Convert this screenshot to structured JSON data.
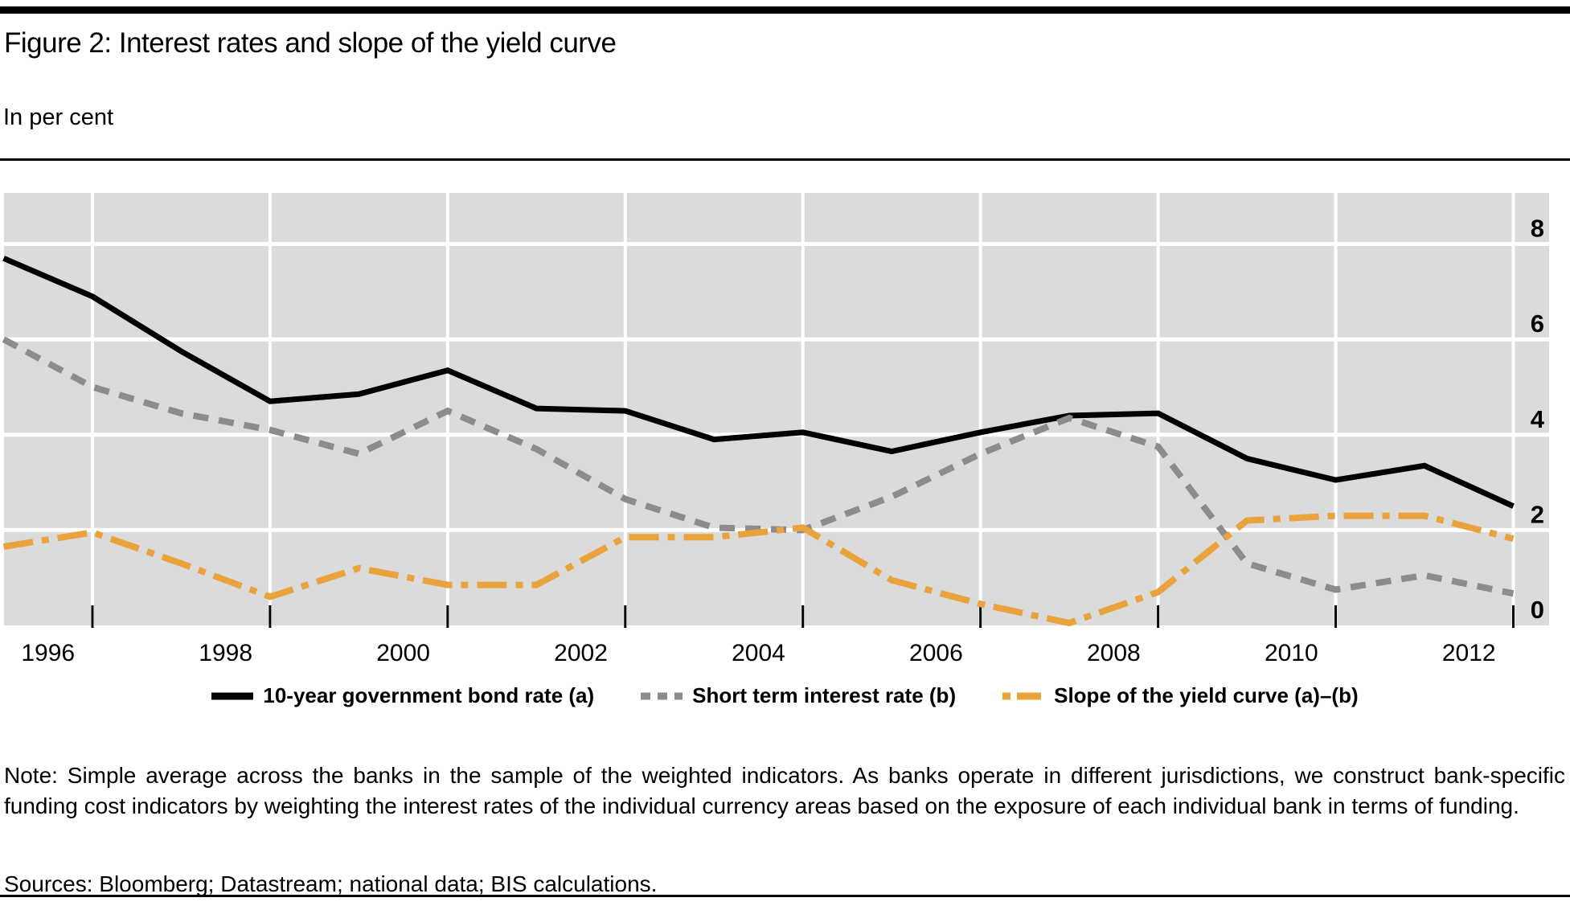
{
  "chart_data": {
    "type": "line",
    "title": "Figure 2: Interest rates and slope of the yield curve",
    "subtitle": "In per cent",
    "grid": true,
    "legend_position": "bottom",
    "plot_bg_color": "#DBDBDB",
    "gridline_color": "#FFFFFF",
    "y_ticks": [
      0,
      2,
      4,
      6,
      8
    ],
    "ylim": [
      0,
      9.1
    ],
    "x_tick_labels": [
      "1996",
      "1998",
      "2000",
      "2002",
      "2004",
      "2006",
      "2008",
      "2010",
      "2012"
    ],
    "x": [
      1996,
      1997,
      1998,
      1999,
      2000,
      2001,
      2002,
      2003,
      2004,
      2005,
      2006,
      2007,
      2008,
      2009,
      2010,
      2011,
      2012,
      2013
    ],
    "series": [
      {
        "name": "10-year government bond rate (a)",
        "color": "#000000",
        "line_style": "solid",
        "values": [
          7.7,
          6.9,
          5.75,
          4.7,
          4.85,
          5.35,
          4.55,
          4.5,
          3.9,
          4.05,
          3.65,
          4.05,
          4.4,
          4.45,
          3.5,
          3.05,
          3.35,
          2.5
        ]
      },
      {
        "name": "Short term interest rate (b)",
        "color": "#8C8C8C",
        "line_style": "dashed",
        "values": [
          6.0,
          5.0,
          4.45,
          4.1,
          3.6,
          4.5,
          3.7,
          2.65,
          2.05,
          2.0,
          2.7,
          3.6,
          4.35,
          3.75,
          1.3,
          0.75,
          1.05,
          0.67
        ]
      },
      {
        "name": "Slope of the yield curve (a)–(b)",
        "color": "#E9A23C",
        "line_style": "dashdot",
        "values": [
          1.65,
          1.95,
          1.3,
          0.6,
          1.2,
          0.85,
          0.85,
          1.85,
          1.85,
          2.05,
          0.95,
          0.45,
          0.05,
          0.7,
          2.2,
          2.3,
          2.3,
          1.82
        ]
      }
    ]
  },
  "note": "Note: Simple average across the banks in the sample of the weighted indicators. As banks operate in different jurisdictions, we construct bank-specific funding cost indicators by weighting the interest rates of the individual currency areas based on the exposure of each individual bank in terms of funding.",
  "sources": "Sources: Bloomberg; Datastream; national data; BIS calculations."
}
